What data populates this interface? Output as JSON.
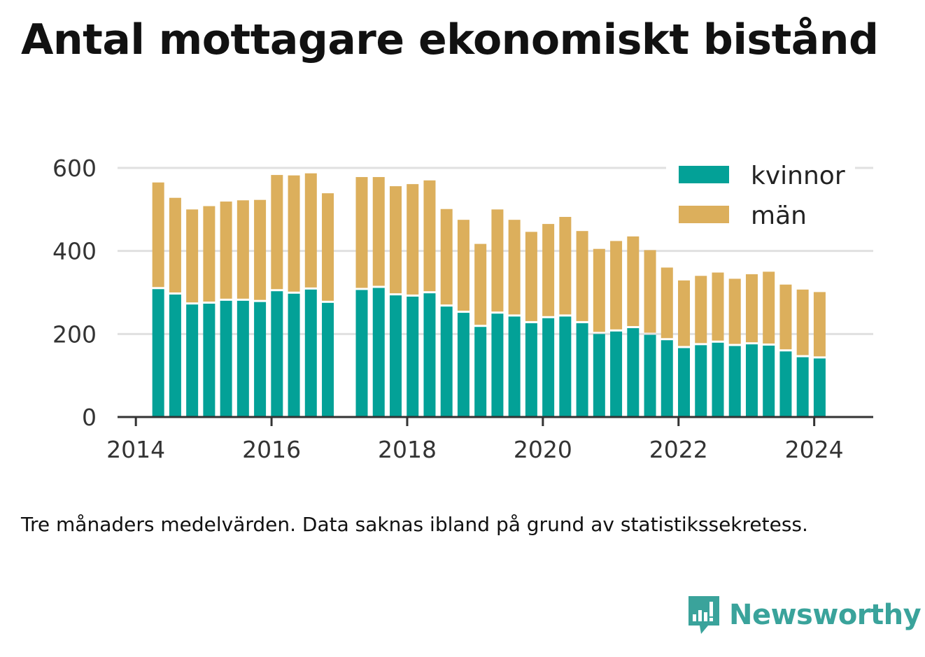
{
  "title": "Antal mottagare ekonomiskt bistånd",
  "note": "Tre månaders medelvärden. Data saknas ibland på grund av statistikssekretess.",
  "brand": "Newsworthy",
  "colors": {
    "kvinnor": "#03a197",
    "man": "#dcaf5c",
    "grid": "#e0e0e0",
    "axis": "#333333",
    "brand": "#3aa39b"
  },
  "chart_data": {
    "type": "bar",
    "stacked": true,
    "title": "Antal mottagare ekonomiskt bistånd",
    "xlabel": "",
    "ylabel": "",
    "xlim": [
      2013.73,
      2024.87
    ],
    "ylim": [
      0,
      600
    ],
    "yticks": [
      0,
      200,
      400,
      600
    ],
    "xticks": [
      2014,
      2016,
      2018,
      2020,
      2022,
      2024
    ],
    "grid": true,
    "legend_position": "top-right",
    "x": [
      2014.33,
      2014.58,
      2014.83,
      2015.08,
      2015.33,
      2015.58,
      2015.83,
      2016.08,
      2016.33,
      2016.58,
      2016.83,
      2017.33,
      2017.58,
      2017.83,
      2018.08,
      2018.33,
      2018.58,
      2018.83,
      2019.08,
      2019.33,
      2019.58,
      2019.83,
      2020.08,
      2020.33,
      2020.58,
      2020.83,
      2021.08,
      2021.33,
      2021.58,
      2021.83,
      2022.08,
      2022.33,
      2022.58,
      2022.83,
      2023.08,
      2023.33,
      2023.58,
      2023.83,
      2024.08
    ],
    "series": [
      {
        "name": "kvinnor",
        "color": "#03a197",
        "values": [
          308,
          295,
          271,
          273,
          280,
          280,
          277,
          303,
          297,
          307,
          275,
          306,
          311,
          293,
          290,
          298,
          266,
          251,
          217,
          249,
          242,
          226,
          238,
          242,
          226,
          200,
          206,
          214,
          198,
          185,
          166,
          173,
          179,
          171,
          175,
          172,
          158,
          144,
          141
        ]
      },
      {
        "name": "män",
        "color": "#dcaf5c",
        "values": [
          257,
          233,
          229,
          235,
          239,
          242,
          246,
          280,
          285,
          280,
          264,
          272,
          267,
          263,
          271,
          272,
          235,
          224,
          200,
          251,
          233,
          220,
          227,
          240,
          222,
          205,
          218,
          221,
          204,
          175,
          163,
          167,
          169,
          162,
          169,
          178,
          161,
          163,
          160
        ]
      }
    ]
  }
}
